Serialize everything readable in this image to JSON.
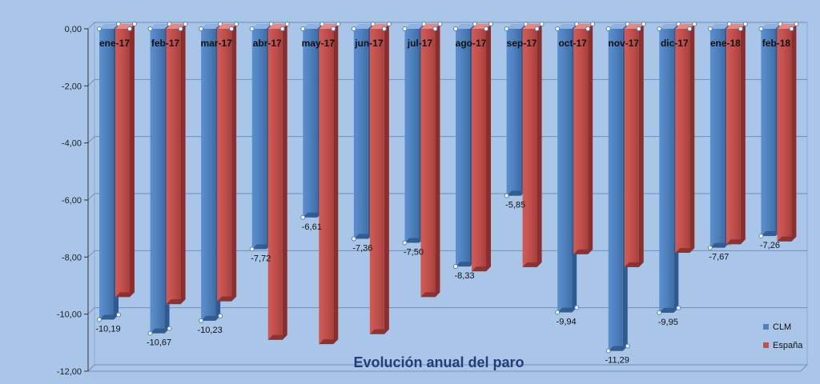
{
  "chart_data": {
    "type": "bar",
    "title": "Evolución anual del paro",
    "categories": [
      "ene-17",
      "feb-17",
      "mar-17",
      "abr-17",
      "may-17",
      "jun-17",
      "jul-17",
      "ago-17",
      "sep-17",
      "oct-17",
      "nov-17",
      "dic-17",
      "ene-18",
      "feb-18"
    ],
    "series": [
      {
        "name": "CLM",
        "color": "#4f81bd",
        "values": [
          -10.19,
          -10.67,
          -10.23,
          -7.72,
          -6.61,
          -7.36,
          -7.5,
          -8.33,
          -5.85,
          -9.94,
          -11.29,
          -9.95,
          -7.67,
          -7.26
        ],
        "data_labels": [
          "-10,19",
          "-10,67",
          "-10,23",
          "-7,72",
          "-6,61",
          "-7,36",
          "-7,50",
          "-8,33",
          "-5,85",
          "-9,94",
          "-11,29",
          "-9,95",
          "-7,67",
          "-7,26"
        ]
      },
      {
        "name": "España",
        "color": "#c0504d",
        "values": [
          -9.4,
          -9.65,
          -9.55,
          -10.9,
          -11.05,
          -10.7,
          -9.4,
          -8.5,
          -8.35,
          -7.9,
          -8.35,
          -7.85,
          -7.55,
          -7.45
        ]
      }
    ],
    "ylim": [
      -12,
      0
    ],
    "yticks": [
      "0,00",
      "-2,00",
      "-4,00",
      "-6,00",
      "-8,00",
      "-10,00",
      "-12,00"
    ],
    "ytick_values": [
      0,
      -2,
      -4,
      -6,
      -8,
      -10,
      -12
    ],
    "xlabel": "",
    "ylabel": "",
    "grid": true,
    "legend_position": "bottom-right",
    "background_color": "#a9c6e8"
  }
}
